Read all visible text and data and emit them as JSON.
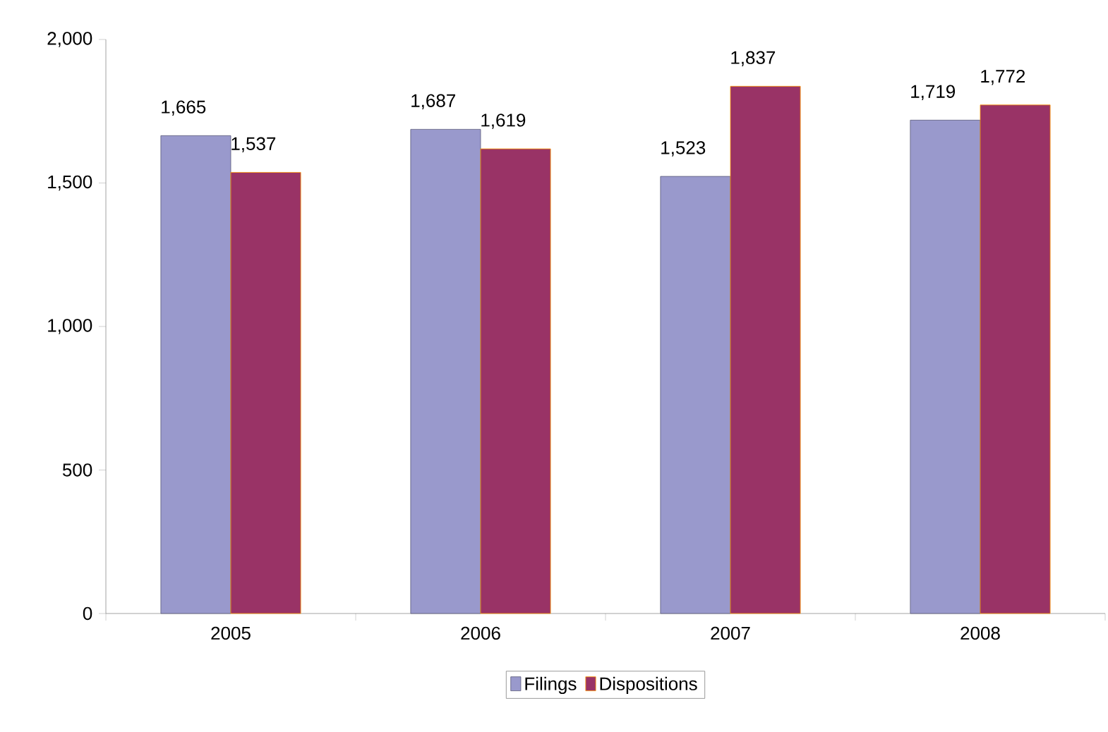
{
  "chart_data": {
    "type": "bar",
    "categories": [
      "2005",
      "2006",
      "2007",
      "2008"
    ],
    "series": [
      {
        "name": "Filings",
        "color": "#9999cc",
        "values": [
          1665,
          1687,
          1523,
          1719
        ],
        "value_labels": [
          "1,665",
          "1,687",
          "1,523",
          "1,719"
        ]
      },
      {
        "name": "Dispositions",
        "color": "#993366",
        "values": [
          1537,
          1619,
          1837,
          1772
        ],
        "value_labels": [
          "1,537",
          "1,619",
          "1,837",
          "1,772"
        ]
      }
    ],
    "ylim": [
      0,
      2000
    ],
    "yticks": [
      0,
      500,
      {
        "value": 1000,
        "label": "1,000"
      },
      {
        "value": 1500,
        "label": "1,500"
      },
      {
        "value": 2000,
        "label": "2,000"
      }
    ],
    "legend": "bottom"
  }
}
